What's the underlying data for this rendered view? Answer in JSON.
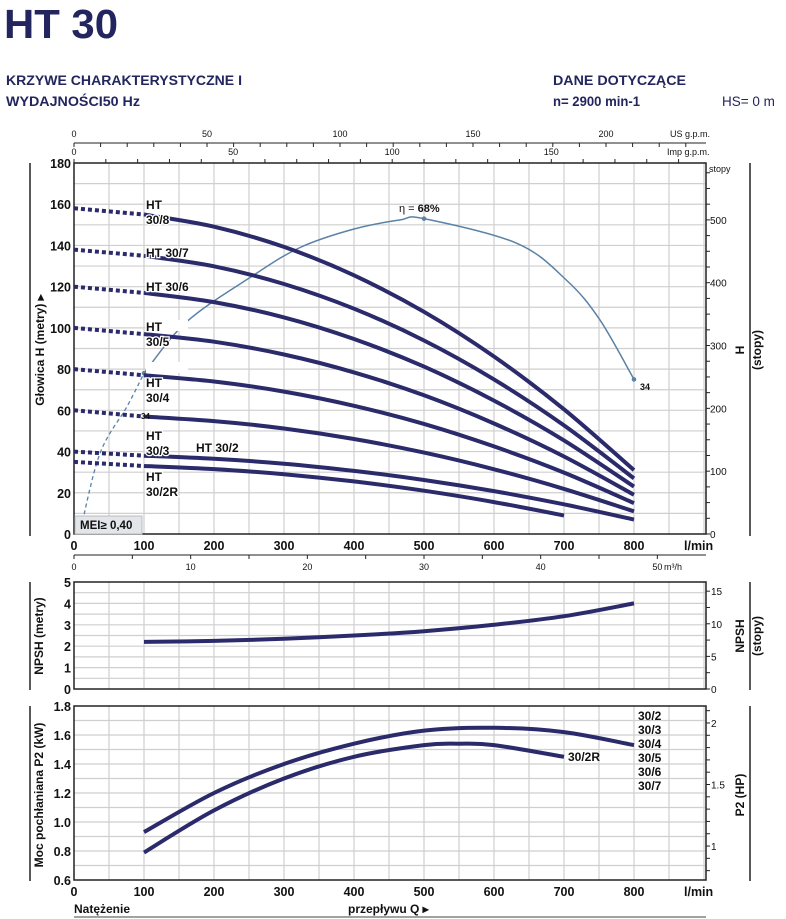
{
  "header": {
    "title": "HT 30",
    "subtitle_line1": "KRZYWE CHARAKTERYSTYCZNE I",
    "subtitle_line2": "WYDAJNOŚCI50 Hz",
    "data_line1": "DANE DOTYCZĄCE",
    "data_line2": "n= 2900 min-1",
    "hs": "HS= 0 m"
  },
  "colors": {
    "curve": "#2b2a6b",
    "efficiency": "#5a82a6",
    "grid": "#cfcfcf",
    "text": "#23255e",
    "mei_box": "#e2e6ea"
  },
  "footer": {
    "left": "Natężenie",
    "center": "przepływu Q ▸"
  },
  "chart_data": [
    {
      "type": "line",
      "id": "head",
      "ylabel": "Głowica H (metry) ▸",
      "ylabel_right": "H",
      "ylabel_right2": "(stopy)",
      "right_unit": "stopy",
      "xlabel_unit": "l/min",
      "xlim": [
        0,
        900
      ],
      "ylim": [
        0,
        180
      ],
      "xticks": [
        0,
        100,
        200,
        300,
        400,
        500,
        600,
        700,
        800
      ],
      "yticks": [
        0,
        20,
        40,
        60,
        80,
        100,
        120,
        140,
        160,
        180
      ],
      "right_ticks": [
        0,
        100,
        200,
        300,
        400,
        500
      ],
      "grid": true,
      "top_axis_us": {
        "unit": "US g.p.m.",
        "ticks": [
          0,
          50,
          100,
          150,
          200
        ]
      },
      "top_axis_imp": {
        "unit": "Imp g.p.m.",
        "ticks": [
          0,
          50,
          100,
          150
        ]
      },
      "bottom_axis_m3h": {
        "unit": "m³/h",
        "ticks": [
          0,
          10,
          20,
          30,
          40,
          50
        ]
      },
      "x": [
        100,
        200,
        300,
        400,
        500,
        600,
        700,
        800
      ],
      "series": [
        {
          "name": "HT 30/8",
          "label": [
            "HT",
            "30/8"
          ],
          "shutoff": 158,
          "values": [
            155,
            149.1,
            139.3,
            125.5,
            107.8,
            86.1,
            60.5,
            31
          ]
        },
        {
          "name": "HT 30/7",
          "label": [
            "HT 30/7"
          ],
          "shutoff": 138,
          "values": [
            135,
            129.9,
            121.3,
            109.3,
            93.9,
            75.0,
            52.7,
            27
          ]
        },
        {
          "name": "HT 30/6",
          "label": [
            "HT 30/6"
          ],
          "shutoff": 120,
          "values": [
            117,
            112.5,
            105.1,
            94.6,
            81.2,
            64.7,
            45.4,
            23
          ]
        },
        {
          "name": "HT 30/5",
          "label": [
            "HT",
            "30/5"
          ],
          "shutoff": 100,
          "values": [
            97,
            93.3,
            87.1,
            78.4,
            67.3,
            53.6,
            37.6,
            19
          ]
        },
        {
          "name": "HT 30/4",
          "label": [
            "HT",
            "30/4"
          ],
          "shutoff": 80,
          "values": [
            77,
            74.0,
            69.1,
            62.2,
            53.4,
            42.5,
            29.8,
            15
          ]
        },
        {
          "name": "HT 30/3",
          "label": [
            "HT",
            "30/3"
          ],
          "shutoff": 60,
          "values": [
            57,
            54.8,
            51.2,
            46.1,
            39.5,
            31.4,
            21.9,
            11
          ]
        },
        {
          "name": "HT 30/2",
          "label": [
            "HT 30/2"
          ],
          "shutoff": 40,
          "values": [
            38,
            36.5,
            34.1,
            30.6,
            26.2,
            20.8,
            14.4,
            7
          ]
        },
        {
          "name": "HT 30/2R",
          "label": [
            "HT",
            "30/2R"
          ],
          "shutoff": 35,
          "values": [
            33,
            31.5,
            29,
            25.5,
            21,
            15.5,
            9,
            null
          ]
        }
      ],
      "efficiency_curve": {
        "label_prefix": "η = ",
        "label_value": "68%",
        "dashed_points": [
          [
            10,
            3
          ],
          [
            37,
            39
          ],
          [
            76,
            62
          ],
          [
            100,
            78
          ]
        ],
        "points": [
          [
            100,
            78
          ],
          [
            161,
            103
          ],
          [
            254,
            125
          ],
          [
            323,
            139
          ],
          [
            400,
            148
          ],
          [
            466,
            152.4
          ],
          [
            500,
            153
          ],
          [
            633,
            141
          ],
          [
            704,
            123
          ],
          [
            751,
            104
          ],
          [
            800,
            75
          ]
        ],
        "end_label": "34",
        "start_label": "34"
      },
      "annotation": "MEI≥ 0,40"
    },
    {
      "type": "line",
      "id": "npsh",
      "ylabel": "NPSH (metry)",
      "ylabel_right": "NPSH",
      "ylabel_right2": "(stopy)",
      "xlim": [
        0,
        900
      ],
      "ylim": [
        0,
        5
      ],
      "yticks": [
        0,
        1,
        2,
        3,
        4,
        5
      ],
      "right_ticks": [
        0,
        5,
        10,
        15
      ],
      "grid": true,
      "x": [
        100,
        200,
        300,
        400,
        500,
        600,
        700,
        800
      ],
      "series": [
        {
          "values": [
            2.2,
            2.25,
            2.35,
            2.5,
            2.7,
            3.0,
            3.4,
            4.0
          ]
        }
      ]
    },
    {
      "type": "line",
      "id": "power",
      "ylabel": "Moc pochłaniana P2 (kW)",
      "ylabel_right": "P2 (HP)",
      "xlabel_unit": "l/min",
      "xlim": [
        0,
        900
      ],
      "ylim": [
        0.6,
        1.8
      ],
      "xticks": [
        0,
        100,
        200,
        300,
        400,
        500,
        600,
        700,
        800
      ],
      "yticks": [
        0.6,
        0.8,
        1.0,
        1.2,
        1.4,
        1.6,
        1.8
      ],
      "yticklabels": [
        "0.6",
        "0.8",
        "1.0",
        "1.2",
        "1.4",
        "1.6",
        "1.8"
      ],
      "right_ylim": [
        0.724,
        2.138
      ],
      "right_ticks": [
        1,
        1.5,
        2
      ],
      "grid": true,
      "series": [
        {
          "label_lines": [
            "30/2",
            "30/3",
            "30/4",
            "30/5",
            "30/6",
            "30/7"
          ],
          "x": [
            100,
            200,
            300,
            400,
            500,
            600,
            700,
            800
          ],
          "values": [
            0.93,
            1.2,
            1.4,
            1.54,
            1.63,
            1.65,
            1.62,
            1.53
          ]
        },
        {
          "label_lines": [
            "30/2R"
          ],
          "x": [
            100,
            200,
            300,
            400,
            500,
            550,
            600,
            700
          ],
          "values": [
            0.79,
            1.08,
            1.3,
            1.45,
            1.53,
            1.54,
            1.53,
            1.45
          ]
        }
      ]
    }
  ]
}
